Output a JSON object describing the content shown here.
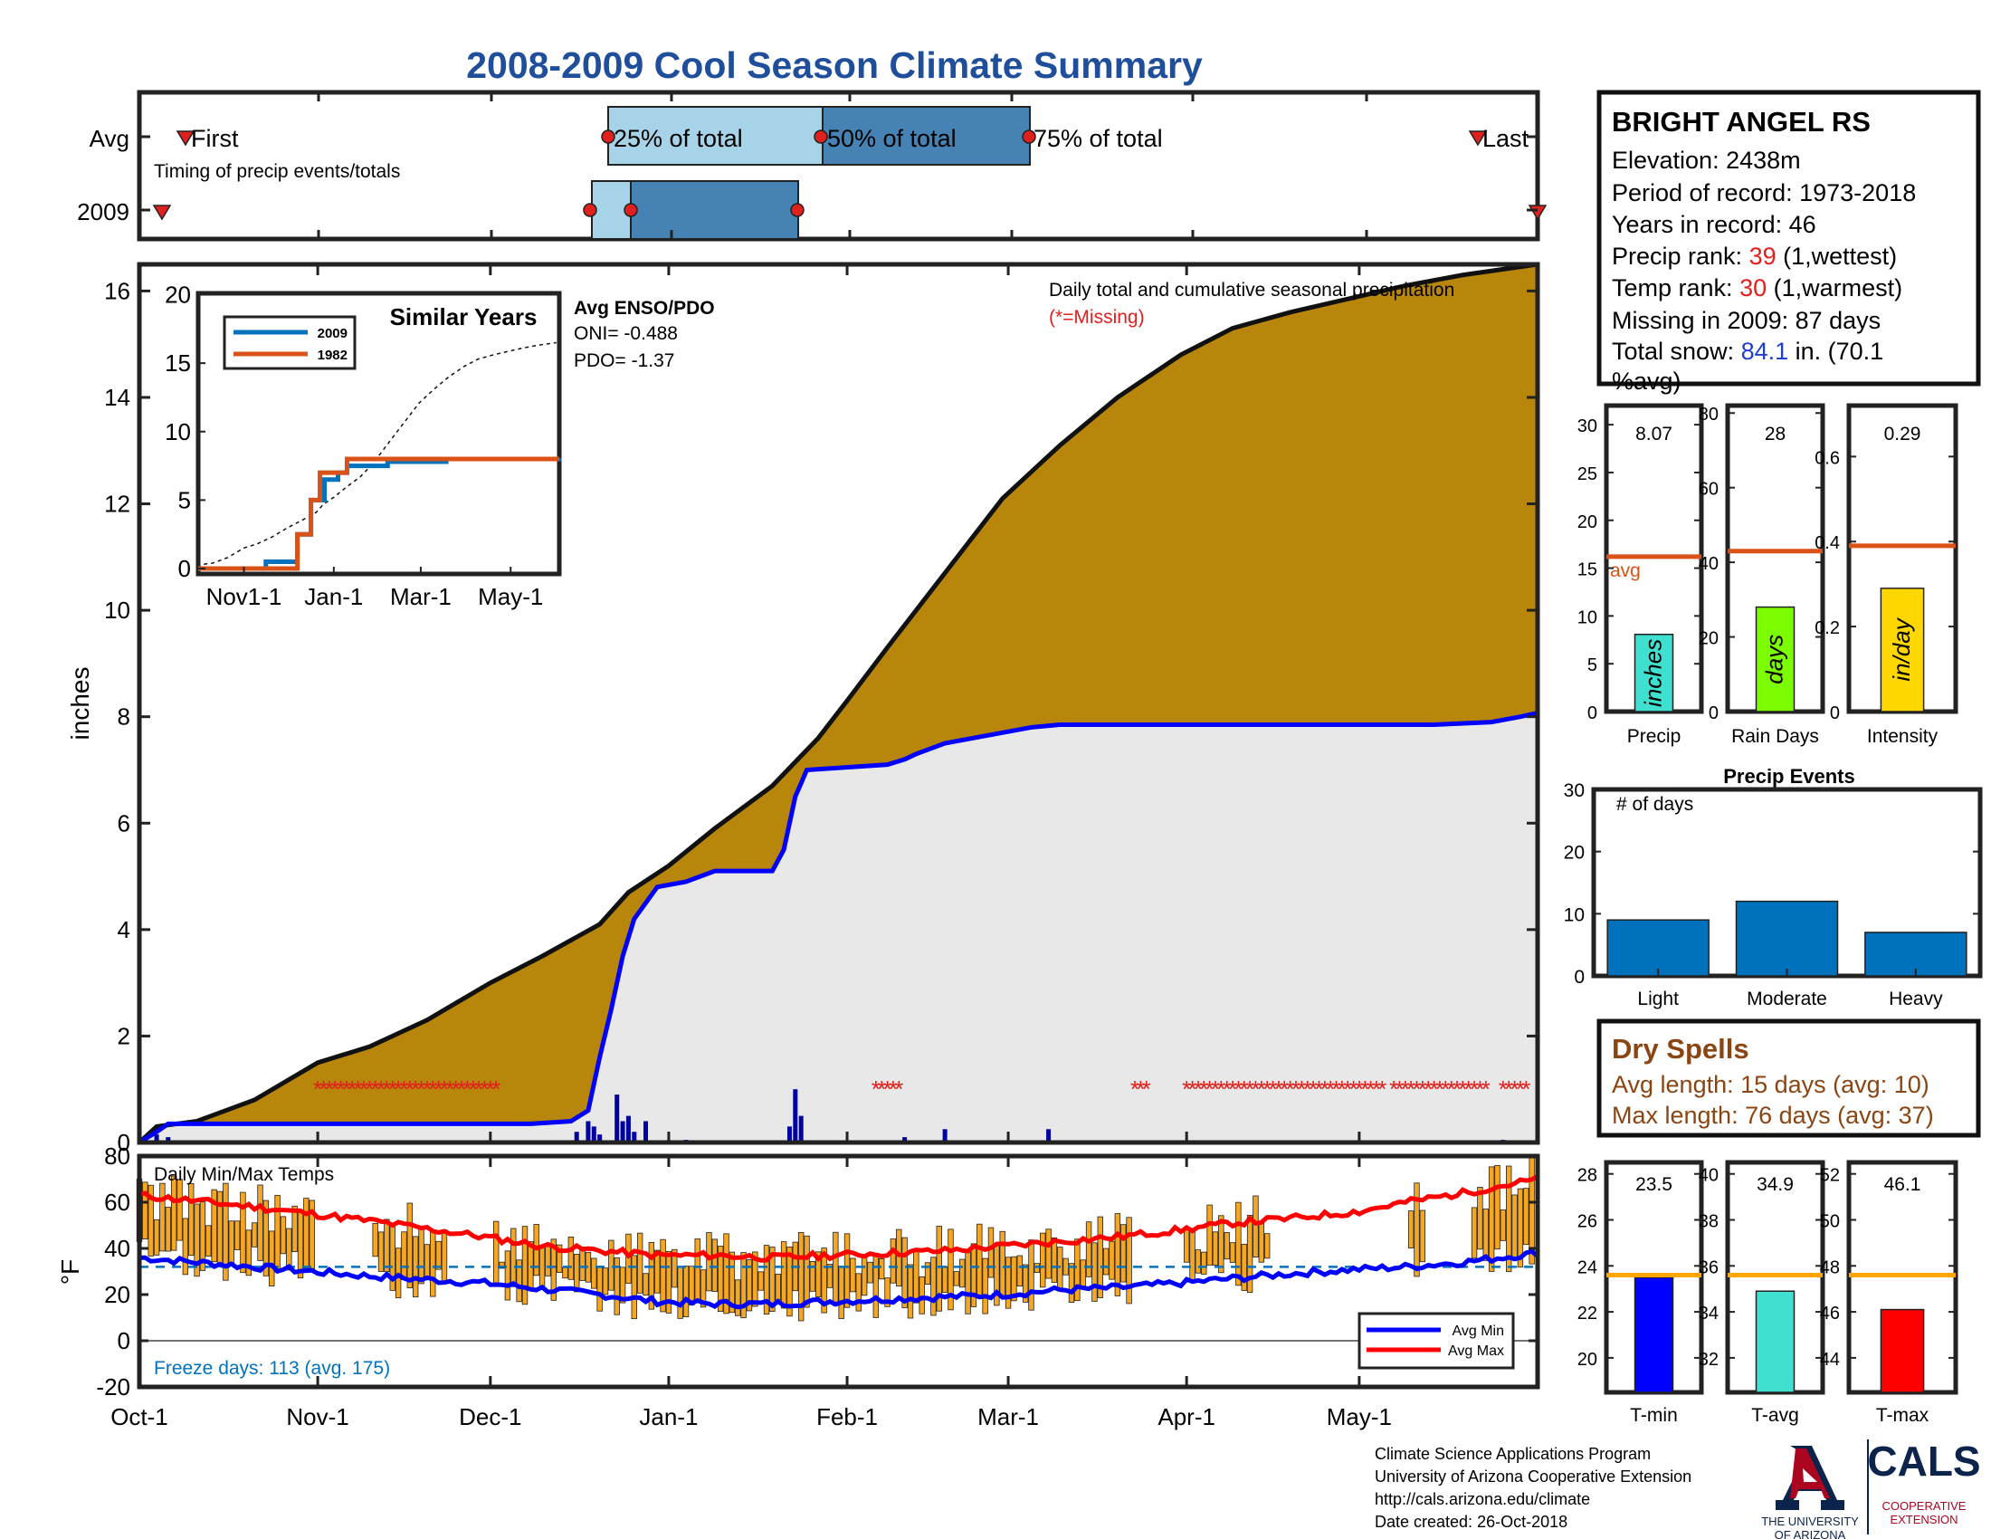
{
  "title": "2008-2009 Cool Season Climate Summary",
  "colors": {
    "title": "#1f4e9a",
    "cum_fill": "#b8860b",
    "light_fill": "#e8e8e8",
    "blue_line": "#0000ff",
    "red_text": "#e0201c",
    "orange_line": "#d95319",
    "series_2009": "#0072bd",
    "series_1982": "#d95319",
    "dry_spells": "#8b4513",
    "freeze_text": "#0072bd",
    "light_blue_box": "#a6d3e8",
    "dark_blue_box": "#4682b4",
    "bar_blue": "#0072bd",
    "temp_bar": "#f5a623",
    "precip_bar": "#40e0d0",
    "rain_days_bar": "#7cfc00",
    "intensity_bar": "#ffd700",
    "tmin_bar": "#0000ff",
    "tavg_bar": "#40e0d0",
    "tmax_bar": "#ff0000",
    "avg_line_gold": "#ffa500",
    "arizona_red": "#ab0520",
    "arizona_blue": "#0c234b"
  },
  "timing": {
    "rows": [
      "Avg",
      "2009"
    ],
    "labels": {
      "first": "First",
      "last": "Last",
      "p25": "25% of total",
      "p50": "50% of total",
      "p75": "75% of total"
    },
    "subtitle": "Timing of precip events/totals"
  },
  "station": {
    "name": "BRIGHT ANGEL RS",
    "elevation_label": "Elevation: 2438m",
    "period_label": "Period of record: 1973-2018",
    "years_label": "Years in record: 46",
    "precip_rank_prefix": "Precip rank: ",
    "precip_rank_value": "39",
    "precip_rank_suffix": " (1,wettest)",
    "temp_rank_prefix": "Temp rank: ",
    "temp_rank_value": "30",
    "temp_rank_suffix": " (1,warmest)",
    "missing_label": "Missing in 2009: 87 days",
    "snow_prefix": "Total snow: ",
    "snow_value": "84.1",
    "snow_suffix": " in. (70.1",
    "snow_suffix2": "%avg)"
  },
  "main_chart": {
    "ylabel": "inches",
    "annotation": "Daily total and cumulative seasonal precipitation",
    "missing_note": "(*=Missing)",
    "y_ticks": [
      "0",
      "2",
      "4",
      "6",
      "8",
      "10",
      "12",
      "14",
      "16"
    ],
    "x_ticks": [
      "Oct-1",
      "Nov-1",
      "Dec-1",
      "Jan-1",
      "Feb-1",
      "Mar-1",
      "Apr-1",
      "May-1"
    ]
  },
  "inset": {
    "title": "Similar Years",
    "legend": [
      "2009",
      "1982"
    ],
    "y_ticks": [
      "0",
      "5",
      "10",
      "15",
      "20"
    ],
    "x_ticks": [
      "Nov1-1",
      "Jan-1",
      "Mar-1",
      "May-1"
    ],
    "enso_title": "Avg ENSO/PDO",
    "oni_label": "ONI= -0.488",
    "pdo_label": "PDO= -1.37"
  },
  "temp_chart": {
    "ylabel": "°F",
    "title": "Daily Min/Max Temps",
    "freeze_label": "Freeze days: 113 (avg. 175)",
    "legend": [
      "Avg Min",
      "Avg Max"
    ],
    "y_ticks": [
      "-20",
      "0",
      "20",
      "40",
      "60",
      "80"
    ]
  },
  "summary_bars": {
    "precip": {
      "value_label": "8.07",
      "unit": "inches",
      "label": "Precip",
      "ticks": [
        "0",
        "5",
        "10",
        "15",
        "20",
        "25",
        "30"
      ],
      "avg_label": "avg"
    },
    "rain_days": {
      "value_label": "28",
      "unit": "days",
      "label": "Rain Days",
      "ticks": [
        "0",
        "20",
        "40",
        "60",
        "80"
      ]
    },
    "intensity": {
      "value_label": "0.29",
      "unit": "in/day",
      "label": "Intensity",
      "ticks": [
        "0",
        "0.2",
        "0.4",
        "0.6"
      ]
    }
  },
  "precip_events": {
    "title": "Precip Events",
    "ylabel": "# of days",
    "categories": [
      "Light",
      "Moderate",
      "Heavy"
    ],
    "ticks": [
      "0",
      "10",
      "20",
      "30"
    ]
  },
  "dry_spells": {
    "title": "Dry Spells",
    "avg_length": "Avg length: 15 days (avg: 10)",
    "max_length": "Max length: 76 days (avg: 37)"
  },
  "temp_summary": {
    "tmin": {
      "value_label": "23.5",
      "label": "T-min",
      "ticks": [
        "20",
        "22",
        "24",
        "26",
        "28"
      ]
    },
    "tavg": {
      "value_label": "34.9",
      "label": "T-avg",
      "ticks": [
        "32",
        "34",
        "36",
        "38",
        "40"
      ]
    },
    "tmax": {
      "value_label": "46.1",
      "label": "T-max",
      "ticks": [
        "44",
        "46",
        "48",
        "50",
        "52"
      ]
    }
  },
  "footer": {
    "line1": "Climate Science Applications Program",
    "line2": "University of Arizona Cooperative Extension",
    "line3": "http://cals.arizona.edu/climate",
    "line4": " Date created: 26-Oct-2018",
    "ua_line1": "THE UNIVERSITY",
    "ua_line2": "OF ARIZONA",
    "cals": "CALS",
    "cals_line1": "COOPERATIVE",
    "cals_line2": "EXTENSION"
  },
  "chart_data": [
    {
      "type": "area",
      "name": "cumulative_precip",
      "x_unit": "day_of_season",
      "xlim": [
        0,
        243
      ],
      "ylim": [
        0,
        16.5
      ],
      "avg_cumulative": {
        "x": [
          0,
          3,
          10,
          20,
          31,
          40,
          50,
          61,
          70,
          80,
          85,
          92,
          100,
          110,
          118,
          123,
          130,
          140,
          150,
          160,
          170,
          181,
          190,
          200,
          212,
          220,
          230,
          243
        ],
        "y": [
          0,
          0.3,
          0.4,
          0.8,
          1.5,
          1.8,
          2.3,
          3.0,
          3.5,
          4.1,
          4.7,
          5.2,
          5.9,
          6.7,
          7.6,
          8.3,
          9.3,
          10.7,
          12.1,
          13.1,
          14.0,
          14.8,
          15.3,
          15.6,
          15.9,
          16.1,
          16.3,
          16.5
        ]
      },
      "cumulative_2009": {
        "x": [
          0,
          3,
          5,
          60,
          68,
          75,
          78,
          80,
          82,
          84,
          86,
          88,
          90,
          95,
          100,
          110,
          112,
          114,
          116,
          130,
          133,
          135,
          140,
          145,
          155,
          160,
          175,
          190,
          210,
          225,
          235,
          240,
          243
        ],
        "y": [
          0,
          0.2,
          0.35,
          0.35,
          0.35,
          0.4,
          0.6,
          1.6,
          2.5,
          3.5,
          4.2,
          4.5,
          4.8,
          4.9,
          5.1,
          5.1,
          5.5,
          6.5,
          7.0,
          7.1,
          7.2,
          7.3,
          7.5,
          7.6,
          7.8,
          7.85,
          7.85,
          7.85,
          7.85,
          7.85,
          7.9,
          8.0,
          8.07
        ]
      },
      "daily_bars": {
        "x": [
          3,
          5,
          76,
          78,
          79,
          80,
          83,
          84,
          85,
          86,
          88,
          95,
          113,
          114,
          115,
          133,
          140,
          158,
          237
        ],
        "y": [
          0.15,
          0.1,
          0.2,
          0.4,
          0.3,
          0.15,
          0.9,
          0.4,
          0.5,
          0.2,
          0.4,
          0.05,
          0.3,
          1.0,
          0.5,
          0.1,
          0.25,
          0.25,
          0.05
        ]
      },
      "missing_ranges": [
        [
          31,
          62
        ],
        [
          128,
          132
        ],
        [
          173,
          175
        ],
        [
          182,
          216
        ],
        [
          218,
          234
        ],
        [
          237,
          241
        ]
      ]
    },
    {
      "type": "line",
      "name": "similar_years",
      "ylim": [
        0,
        20
      ],
      "series": [
        {
          "name": "2009",
          "x": [
            0,
            15,
            20,
            22,
            23,
            25,
            26,
            28,
            31,
            33,
            42,
            55,
            80
          ],
          "y": [
            0,
            0.5,
            0.5,
            2.5,
            2.5,
            5,
            5,
            6.5,
            7,
            7.5,
            7.8,
            8,
            8.07
          ]
        },
        {
          "name": "1982",
          "x": [
            0,
            18,
            22,
            23,
            25,
            27,
            30,
            33,
            80
          ],
          "y": [
            0,
            0,
            2.5,
            2.5,
            5,
            7,
            7,
            8,
            8
          ]
        }
      ]
    },
    {
      "type": "line",
      "name": "daily_temps",
      "ylim": [
        -20,
        80
      ],
      "series": [
        {
          "name": "Avg Min",
          "x": [
            0,
            20,
            40,
            60,
            80,
            90,
            100,
            110,
            120,
            130,
            140,
            150,
            160,
            170,
            181,
            190,
            200,
            212,
            220,
            230,
            243
          ],
          "y": [
            36,
            32,
            28,
            25,
            20,
            17,
            16,
            16,
            17,
            18,
            19,
            20,
            22,
            23,
            25,
            27,
            29,
            31,
            32,
            34,
            38
          ]
        },
        {
          "name": "Avg Max",
          "x": [
            0,
            20,
            40,
            60,
            70,
            80,
            90,
            100,
            110,
            120,
            130,
            140,
            150,
            160,
            170,
            181,
            190,
            200,
            212,
            220,
            230,
            243
          ],
          "y": [
            63,
            58,
            52,
            45,
            41,
            39,
            37,
            37,
            36,
            37,
            38,
            39,
            41,
            43,
            45,
            48,
            51,
            53,
            56,
            60,
            64,
            70
          ]
        }
      ],
      "freeze_line": 32
    },
    {
      "type": "bar",
      "name": "summary_precip",
      "categories": [
        "Precip",
        "Rain Days",
        "Intensity"
      ],
      "values": [
        8.07,
        28,
        0.29
      ],
      "avg": [
        16.2,
        43,
        0.39
      ],
      "ylim": [
        [
          0,
          32
        ],
        [
          0,
          82
        ],
        [
          0,
          0.72
        ]
      ]
    },
    {
      "type": "bar",
      "name": "precip_events",
      "categories": [
        "Light",
        "Moderate",
        "Heavy"
      ],
      "values": [
        9,
        12,
        7
      ],
      "ylim": [
        0,
        30
      ]
    },
    {
      "type": "bar",
      "name": "temp_summary",
      "categories": [
        "T-min",
        "T-avg",
        "T-max"
      ],
      "values": [
        23.5,
        34.9,
        46.1
      ],
      "avg": [
        23.6,
        35.6,
        47.6
      ],
      "ylim": [
        [
          18.5,
          28.5
        ],
        [
          30.5,
          40.5
        ],
        [
          42.5,
          52.5
        ]
      ]
    }
  ]
}
